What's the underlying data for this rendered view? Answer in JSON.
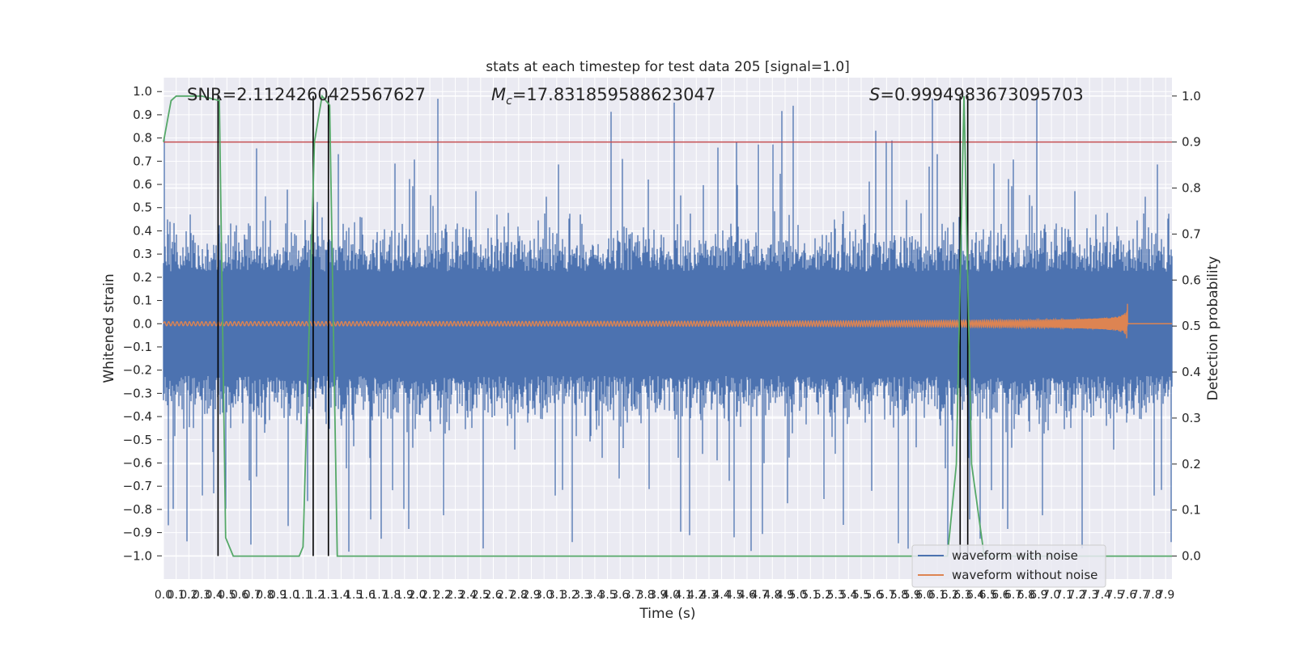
{
  "chart_data": {
    "type": "line",
    "title": "stats at each timestep for test data 205 [signal=1.0]",
    "xlabel": "Time (s)",
    "ylabel": "Whitened strain",
    "ylabel_right": "Detection probability",
    "xlim": [
      0.0,
      7.95
    ],
    "ylim": [
      -1.1,
      1.06
    ],
    "ylim_right": [
      -0.05,
      1.04
    ],
    "x_ticks": [
      "0.0",
      "0.1",
      "0.2",
      "0.3",
      "0.4",
      "0.5",
      "0.6",
      "0.7",
      "0.8",
      "0.9",
      "1.0",
      "1.1",
      "1.2",
      "1.3",
      "1.4",
      "1.5",
      "1.6",
      "1.7",
      "1.8",
      "1.9",
      "2.0",
      "2.1",
      "2.2",
      "2.3",
      "2.4",
      "2.5",
      "2.6",
      "2.7",
      "2.8",
      "2.9",
      "3.0",
      "3.1",
      "3.2",
      "3.3",
      "3.4",
      "3.5",
      "3.6",
      "3.7",
      "3.8",
      "3.9",
      "4.0",
      "4.1",
      "4.2",
      "4.3",
      "4.4",
      "4.5",
      "4.6",
      "4.7",
      "4.8",
      "4.9",
      "5.0",
      "5.1",
      "5.2",
      "5.3",
      "5.4",
      "5.5",
      "5.6",
      "5.7",
      "5.8",
      "5.9",
      "6.0",
      "6.1",
      "6.2",
      "6.3",
      "6.4",
      "6.5",
      "6.6",
      "6.7",
      "6.8",
      "6.9",
      "7.0",
      "7.1",
      "7.2",
      "7.3",
      "7.4",
      "7.5",
      "7.6",
      "7.7",
      "7.8",
      "7.9"
    ],
    "y_ticks_left": [
      "1.0",
      "0.9",
      "0.8",
      "0.7",
      "0.6",
      "0.5",
      "0.4",
      "0.3",
      "0.2",
      "0.1",
      "0.0",
      "−0.1",
      "−0.2",
      "−0.3",
      "−0.4",
      "−0.5",
      "−0.6",
      "−0.7",
      "−0.8",
      "−0.9",
      "−1.0"
    ],
    "y_ticks_right": [
      "1.0",
      "0.9",
      "0.8",
      "0.7",
      "0.6",
      "0.5",
      "0.4",
      "0.3",
      "0.2",
      "0.1",
      "0.0"
    ],
    "annotations": {
      "snr": "SNR=2.1124260425567627",
      "mc_symbol": "M",
      "mc_sub": "c",
      "mc_value": "=17.831859588623047",
      "s_symbol": "S",
      "s_value": "=0.9994983673095703"
    },
    "legend": {
      "position": "lower-right",
      "entries": [
        "waveform with noise",
        "waveform without noise"
      ]
    },
    "colors": {
      "noise": "#4c72b0",
      "clean": "#dd8452",
      "probability": "#55a868",
      "threshold": "#c44e52",
      "event_lines": "#000000",
      "plot_bg": "#eaeaf2",
      "grid": "#ffffff"
    },
    "series": [
      {
        "name": "waveform with noise",
        "axis": "left",
        "kind": "noise",
        "x_range": [
          0.0,
          7.95
        ],
        "amplitude_typical": 0.3,
        "amplitude_peak": [
          -0.99,
          0.97
        ]
      },
      {
        "name": "waveform without noise",
        "axis": "left",
        "kind": "chirp",
        "x_range": [
          0.0,
          7.6
        ],
        "peak_amplitude": 0.09,
        "merger_time": 7.6
      },
      {
        "axis": "right",
        "kind": "probability",
        "x": [
          0.0,
          0.06,
          0.1,
          0.2,
          0.3,
          0.44,
          0.49,
          0.55,
          1.07,
          1.1,
          1.19,
          1.25,
          1.31,
          1.37,
          6.18,
          6.25,
          6.31,
          6.37,
          6.47,
          7.2,
          7.4,
          7.5,
          7.6,
          7.95
        ],
        "values": [
          0.9,
          0.99,
          1.0,
          1.0,
          1.0,
          0.99,
          0.04,
          0.0,
          0.0,
          0.02,
          0.9,
          1.0,
          0.98,
          0.0,
          0.0,
          0.2,
          1.0,
          0.2,
          0.0,
          0.0,
          0.0,
          0.0,
          0.0,
          0.0
        ]
      },
      {
        "axis": "right",
        "kind": "threshold",
        "value": 0.9
      }
    ],
    "event_lines": [
      {
        "x": 0.43,
        "ymin": 0.0,
        "ymax": 1.0
      },
      {
        "x": 1.18,
        "ymin": 0.0,
        "ymax": 1.0
      },
      {
        "x": 1.3,
        "ymin": 0.0,
        "ymax": 1.0
      },
      {
        "x": 6.28,
        "ymin": 0.0,
        "ymax": 1.0
      },
      {
        "x": 6.34,
        "ymin": 0.0,
        "ymax": 1.0
      }
    ],
    "grid": true
  }
}
